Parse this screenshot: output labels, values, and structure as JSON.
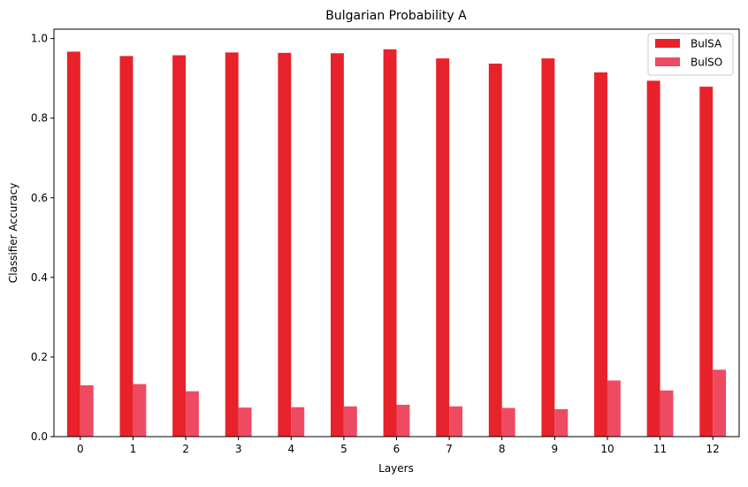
{
  "chart_data": {
    "type": "bar",
    "title": "Bulgarian Probability A",
    "xlabel": "Layers",
    "ylabel": "Classifier Accuracy",
    "categories": [
      "0",
      "1",
      "2",
      "3",
      "4",
      "5",
      "6",
      "7",
      "8",
      "9",
      "10",
      "11",
      "12"
    ],
    "series": [
      {
        "name": "BulSA",
        "color": "#e8222a",
        "values": [
          0.967,
          0.956,
          0.958,
          0.965,
          0.964,
          0.963,
          0.973,
          0.95,
          0.937,
          0.95,
          0.915,
          0.894,
          0.879
        ]
      },
      {
        "name": "BulSO",
        "color": "#ee4b62",
        "values": [
          0.129,
          0.132,
          0.114,
          0.073,
          0.074,
          0.076,
          0.08,
          0.076,
          0.072,
          0.069,
          0.141,
          0.116,
          0.168
        ]
      }
    ],
    "ylim": [
      0,
      1.0235
    ],
    "yticks": [
      "0.0",
      "0.2",
      "0.4",
      "0.6",
      "0.8",
      "1.0"
    ],
    "ytick_values": [
      0,
      0.2,
      0.4,
      0.6,
      0.8,
      1.0
    ],
    "grid": false,
    "legend_position": "top-right"
  }
}
